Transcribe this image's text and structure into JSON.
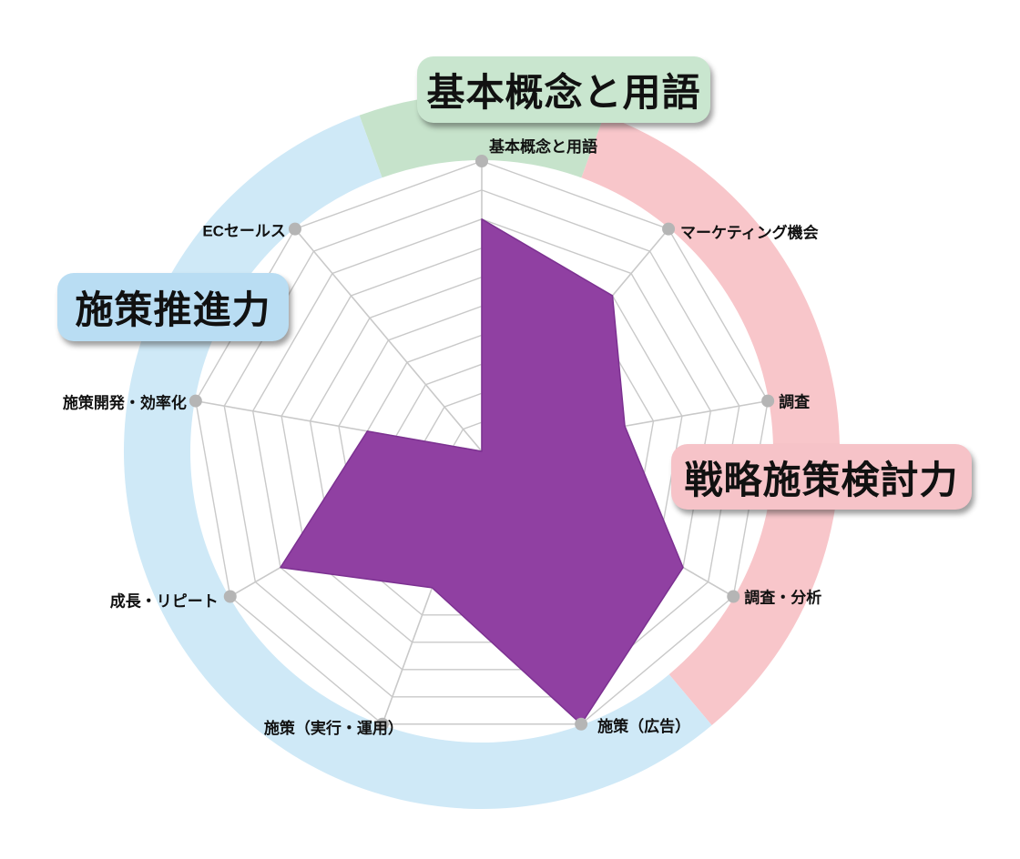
{
  "chart_data": {
    "type": "radar",
    "categories": [
      "基本概念と用語",
      "マーケティング機会",
      "調査",
      "調査・分析",
      "施策（広告）",
      "施策（実行・運用）",
      "成長・リピート",
      "施策開発・効率化",
      "ECセールス"
    ],
    "values": [
      8,
      7,
      5,
      8,
      10,
      5,
      8,
      4,
      0
    ],
    "value_max": 10,
    "grid_levels": 10,
    "start_angle_deg": 90,
    "direction": "clockwise",
    "legend_position": "none",
    "grid": true,
    "series_color": "#9040a2",
    "series_edge_color": "#7c3191",
    "grid_color": "#c9c9c9",
    "axis_dot_color": "#b5b5b5",
    "axis_label_color": "#111111",
    "ring_sections": [
      {
        "label": "基本概念と用語",
        "from_deg": 110,
        "to_deg": 70,
        "color": "#c6e3cb"
      },
      {
        "label": "戦略施策検討力",
        "from_deg": 70,
        "to_deg": -50,
        "color": "#f8c6ca"
      },
      {
        "label": "施策推進力",
        "from_deg": -50,
        "to_deg": -250,
        "color": "#cfe9f7"
      }
    ]
  },
  "section_labels": {
    "basic": {
      "text": "基本概念と用語",
      "bg": "#c9e6cf"
    },
    "execution": {
      "text": "施策推進力",
      "bg": "#b9ddf3"
    },
    "strategy": {
      "text": "戦略施策検討力",
      "bg": "#f6c3c8"
    }
  }
}
